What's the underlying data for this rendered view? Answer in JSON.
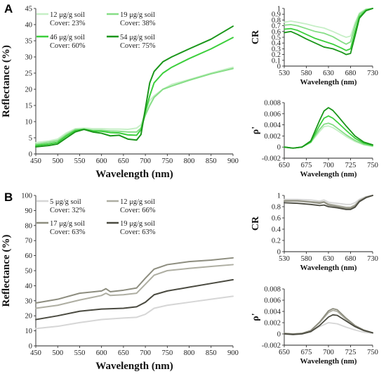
{
  "panel_labels": [
    "A",
    "B"
  ],
  "chart_data": [
    {
      "id": "A-main",
      "type": "line",
      "xlabel": "Wavelength (nm)",
      "ylabel": "Reflectance (%)",
      "xlim": [
        450,
        900
      ],
      "ylim": [
        0,
        45
      ],
      "xticks": [
        450,
        500,
        550,
        600,
        650,
        700,
        750,
        800,
        850,
        900
      ],
      "yticks": [
        0,
        5,
        10,
        15,
        20,
        25,
        30,
        35,
        40,
        45
      ],
      "legend": {
        "placement": "top-left",
        "columns": 2
      },
      "series": [
        {
          "name": "12 μg/g soil",
          "note": "Cover: 23%",
          "color": "#c6efc6",
          "x": [
            450,
            480,
            500,
            520,
            540,
            560,
            580,
            600,
            620,
            640,
            660,
            680,
            690,
            700,
            710,
            720,
            740,
            760,
            800,
            850,
            900
          ],
          "y": [
            3.5,
            4,
            4.6,
            6.5,
            7.8,
            8,
            7.8,
            7.8,
            7.7,
            7.7,
            7.6,
            8,
            9,
            13,
            16.5,
            18,
            20,
            21.5,
            23,
            25,
            26.8
          ]
        },
        {
          "name": "19 μg/g soil",
          "note": "Cover: 38%",
          "color": "#86de86",
          "x": [
            450,
            480,
            500,
            520,
            540,
            560,
            580,
            600,
            620,
            640,
            660,
            680,
            690,
            700,
            710,
            720,
            740,
            760,
            800,
            850,
            900
          ],
          "y": [
            3,
            3.6,
            4.1,
            6,
            7.5,
            7.7,
            7.3,
            7.3,
            7.1,
            7,
            6.8,
            6.8,
            8,
            12,
            15,
            17.5,
            20,
            21,
            22.8,
            24.8,
            26.4
          ]
        },
        {
          "name": "46 μg/g soil",
          "note": "Cover: 60%",
          "color": "#3ccf3c",
          "x": [
            450,
            480,
            500,
            520,
            540,
            560,
            580,
            600,
            620,
            640,
            660,
            680,
            690,
            700,
            710,
            720,
            740,
            760,
            800,
            850,
            900
          ],
          "y": [
            2.6,
            3.1,
            3.6,
            5.6,
            7.2,
            7.6,
            7.1,
            7,
            6.6,
            6.5,
            5.9,
            5.8,
            7.5,
            13,
            18,
            22,
            25,
            26.8,
            29.5,
            32.5,
            36
          ]
        },
        {
          "name": "54 μg/g soil",
          "note": "Cover: 75%",
          "color": "#1a961a",
          "x": [
            450,
            480,
            500,
            520,
            540,
            560,
            580,
            600,
            620,
            640,
            660,
            680,
            690,
            700,
            710,
            720,
            740,
            760,
            800,
            850,
            900
          ],
          "y": [
            2.2,
            2.6,
            3.1,
            5,
            6.8,
            7.6,
            6.8,
            6.4,
            5.6,
            5.8,
            4.6,
            4.3,
            6,
            14,
            22,
            25.5,
            28.5,
            30,
            32.5,
            35.5,
            39.5
          ]
        }
      ]
    },
    {
      "id": "A-cr",
      "type": "line",
      "xlabel": "Wavelength (nm)",
      "ylabel": "CR",
      "xlim": [
        530,
        730
      ],
      "ylim": [
        0,
        1
      ],
      "xticks": [
        530,
        580,
        630,
        680,
        730
      ],
      "yticks": [
        0,
        0.1,
        0.2,
        0.3,
        0.4,
        0.5,
        0.6,
        0.7,
        0.8,
        0.9,
        1
      ],
      "series": [
        {
          "color": "#c6efc6",
          "x": [
            530,
            545,
            560,
            580,
            600,
            620,
            640,
            660,
            670,
            680,
            690,
            700,
            715,
            730
          ],
          "y": [
            0.76,
            0.78,
            0.76,
            0.73,
            0.69,
            0.66,
            0.6,
            0.53,
            0.5,
            0.52,
            0.75,
            0.92,
            0.99,
            1
          ]
        },
        {
          "color": "#86de86",
          "x": [
            530,
            545,
            560,
            580,
            600,
            620,
            640,
            660,
            670,
            680,
            690,
            700,
            715,
            730
          ],
          "y": [
            0.71,
            0.72,
            0.7,
            0.65,
            0.6,
            0.57,
            0.51,
            0.42,
            0.38,
            0.42,
            0.7,
            0.9,
            0.98,
            1
          ]
        },
        {
          "color": "#3ccf3c",
          "x": [
            530,
            545,
            560,
            580,
            600,
            620,
            640,
            660,
            670,
            680,
            690,
            700,
            715,
            730
          ],
          "y": [
            0.64,
            0.65,
            0.62,
            0.55,
            0.48,
            0.43,
            0.38,
            0.31,
            0.27,
            0.3,
            0.6,
            0.86,
            0.97,
            1
          ]
        },
        {
          "color": "#1a961a",
          "x": [
            530,
            545,
            560,
            580,
            600,
            620,
            640,
            660,
            670,
            680,
            690,
            700,
            715,
            730
          ],
          "y": [
            0.58,
            0.6,
            0.55,
            0.47,
            0.4,
            0.33,
            0.3,
            0.24,
            0.2,
            0.22,
            0.52,
            0.83,
            0.96,
            1
          ]
        }
      ]
    },
    {
      "id": "A-deriv",
      "type": "line",
      "xlabel": "Wavelength (nm)",
      "ylabel": "ρ'",
      "xlim": [
        650,
        750
      ],
      "ylim": [
        -0.002,
        0.008
      ],
      "xticks": [
        650,
        675,
        700,
        725,
        750
      ],
      "yticks": [
        -0.002,
        0,
        0.002,
        0.004,
        0.006,
        0.008
      ],
      "series": [
        {
          "color": "#c6efc6",
          "x": [
            650,
            660,
            670,
            680,
            690,
            695,
            700,
            705,
            710,
            720,
            730,
            740,
            750
          ],
          "y": [
            0,
            -0.0002,
            0,
            0.0008,
            0.0028,
            0.0037,
            0.0038,
            0.0035,
            0.003,
            0.0019,
            0.001,
            0.0004,
            0.0001
          ]
        },
        {
          "color": "#86de86",
          "x": [
            650,
            660,
            670,
            680,
            690,
            695,
            700,
            705,
            710,
            720,
            730,
            740,
            750
          ],
          "y": [
            0,
            -0.0002,
            0,
            0.0009,
            0.0032,
            0.0041,
            0.0043,
            0.004,
            0.0034,
            0.0022,
            0.0012,
            0.0005,
            0.0002
          ]
        },
        {
          "color": "#3ccf3c",
          "x": [
            650,
            660,
            670,
            680,
            690,
            695,
            700,
            705,
            710,
            720,
            730,
            740,
            750
          ],
          "y": [
            0,
            -0.0002,
            0,
            0.0009,
            0.0039,
            0.0052,
            0.0056,
            0.0052,
            0.0045,
            0.003,
            0.0016,
            0.0007,
            0.0003
          ]
        },
        {
          "color": "#1a961a",
          "x": [
            650,
            660,
            670,
            680,
            690,
            695,
            700,
            705,
            710,
            720,
            730,
            740,
            750
          ],
          "y": [
            0,
            -0.0002,
            0,
            0.0011,
            0.0048,
            0.0065,
            0.0071,
            0.0066,
            0.0057,
            0.0038,
            0.002,
            0.0009,
            0.0004
          ]
        }
      ]
    },
    {
      "id": "B-main",
      "type": "line",
      "xlabel": "Wavelength (nm)",
      "ylabel": "Reflectance (%)",
      "xlim": [
        450,
        900
      ],
      "ylim": [
        0,
        100
      ],
      "xticks": [
        450,
        500,
        550,
        600,
        650,
        700,
        750,
        800,
        850,
        900
      ],
      "yticks": [
        0,
        10,
        20,
        30,
        40,
        50,
        60,
        70,
        80,
        90,
        100
      ],
      "legend": {
        "placement": "top-left",
        "columns": 2
      },
      "series": [
        {
          "name": "5 μg/g soil",
          "note": "Cover: 32%",
          "color": "#d6d6d6",
          "x": [
            450,
            500,
            550,
            600,
            650,
            680,
            700,
            720,
            750,
            800,
            850,
            900
          ],
          "y": [
            11.5,
            13,
            15.5,
            17.5,
            18.5,
            19,
            21,
            25,
            27,
            29,
            31,
            33
          ]
        },
        {
          "name": "12 μg/g soil",
          "note": "Cover: 66%",
          "color": "#aeaea2",
          "x": [
            450,
            500,
            550,
            600,
            610,
            620,
            650,
            680,
            700,
            720,
            750,
            800,
            850,
            900
          ],
          "y": [
            25,
            27,
            30.5,
            33.5,
            35,
            33.5,
            34,
            35,
            41,
            47,
            50,
            51.5,
            52.8,
            54
          ]
        },
        {
          "name": "17 μg/g soil",
          "note": "Cover: 63%",
          "color": "#8d8d7f",
          "x": [
            450,
            500,
            550,
            600,
            610,
            620,
            650,
            680,
            700,
            720,
            750,
            800,
            850,
            900
          ],
          "y": [
            28.5,
            31,
            35,
            36.5,
            38,
            36,
            37,
            38.5,
            45,
            51,
            54,
            56,
            57,
            58.5
          ]
        },
        {
          "name": "19 μg/g soil",
          "note": "Cover: 63%",
          "color": "#4a4a40",
          "x": [
            450,
            500,
            550,
            600,
            650,
            680,
            700,
            720,
            750,
            800,
            850,
            900
          ],
          "y": [
            17.5,
            20,
            23,
            24.5,
            25,
            26,
            29,
            34,
            36.5,
            39,
            41.5,
            44
          ]
        }
      ]
    },
    {
      "id": "B-cr",
      "type": "line",
      "xlabel": "Wavelength (nm)",
      "ylabel": "CR",
      "xlim": [
        530,
        730
      ],
      "ylim": [
        0,
        1
      ],
      "xticks": [
        530,
        580,
        630,
        680,
        730
      ],
      "yticks": [
        0,
        0.2,
        0.4,
        0.6,
        0.8,
        1
      ],
      "series": [
        {
          "color": "#d6d6d6",
          "x": [
            530,
            560,
            590,
            610,
            620,
            630,
            650,
            670,
            680,
            690,
            700,
            715,
            730
          ],
          "y": [
            0.93,
            0.93,
            0.92,
            0.9,
            0.92,
            0.88,
            0.86,
            0.84,
            0.84,
            0.87,
            0.93,
            0.98,
            1
          ]
        },
        {
          "color": "#aeaea2",
          "x": [
            530,
            560,
            590,
            610,
            620,
            630,
            650,
            670,
            680,
            690,
            700,
            715,
            730
          ],
          "y": [
            0.91,
            0.91,
            0.89,
            0.88,
            0.89,
            0.85,
            0.82,
            0.79,
            0.79,
            0.83,
            0.91,
            0.97,
            1
          ]
        },
        {
          "color": "#8d8d7f",
          "x": [
            530,
            560,
            590,
            610,
            620,
            630,
            650,
            670,
            680,
            690,
            700,
            715,
            730
          ],
          "y": [
            0.9,
            0.9,
            0.88,
            0.86,
            0.88,
            0.83,
            0.8,
            0.77,
            0.77,
            0.81,
            0.9,
            0.97,
            1
          ]
        },
        {
          "color": "#4a4a40",
          "x": [
            530,
            560,
            590,
            610,
            620,
            630,
            650,
            670,
            680,
            690,
            700,
            715,
            730
          ],
          "y": [
            0.87,
            0.86,
            0.84,
            0.82,
            0.83,
            0.8,
            0.78,
            0.75,
            0.75,
            0.79,
            0.89,
            0.96,
            1
          ]
        }
      ]
    },
    {
      "id": "B-deriv",
      "type": "line",
      "xlabel": "Wavelength (nm)",
      "ylabel": "ρ'",
      "xlim": [
        650,
        750
      ],
      "ylim": [
        -0.002,
        0.008
      ],
      "xticks": [
        650,
        675,
        700,
        725,
        750
      ],
      "yticks": [
        -0.002,
        0,
        0.002,
        0.004,
        0.006,
        0.008
      ],
      "series": [
        {
          "color": "#d6d6d6",
          "x": [
            650,
            660,
            670,
            680,
            690,
            700,
            710,
            720,
            730,
            740,
            750
          ],
          "y": [
            0,
            -0.0001,
            0,
            0.0004,
            0.0013,
            0.002,
            0.0018,
            0.0012,
            0.0007,
            0.0003,
            0.0001
          ]
        },
        {
          "color": "#aeaea2",
          "x": [
            650,
            660,
            670,
            680,
            690,
            700,
            705,
            710,
            720,
            730,
            740,
            750
          ],
          "y": [
            0.0001,
            0,
            0.0001,
            0.0006,
            0.002,
            0.0038,
            0.0042,
            0.004,
            0.0026,
            0.0014,
            0.0006,
            0.0002
          ]
        },
        {
          "color": "#8d8d7f",
          "x": [
            650,
            660,
            670,
            680,
            690,
            700,
            705,
            710,
            720,
            730,
            740,
            750
          ],
          "y": [
            0.0001,
            0,
            0.0001,
            0.0006,
            0.0021,
            0.0041,
            0.0045,
            0.0043,
            0.0028,
            0.0015,
            0.0007,
            0.0002
          ]
        },
        {
          "color": "#4a4a40",
          "x": [
            650,
            660,
            670,
            680,
            690,
            700,
            705,
            710,
            720,
            730,
            740,
            750
          ],
          "y": [
            0,
            -0.0001,
            0,
            0.0004,
            0.0015,
            0.003,
            0.0034,
            0.0033,
            0.0023,
            0.0013,
            0.0006,
            0.0002
          ]
        }
      ]
    }
  ]
}
